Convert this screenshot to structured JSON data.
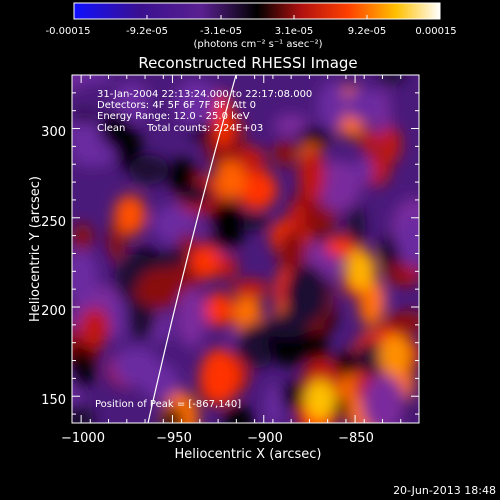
{
  "colorbar": {
    "tick_labels": [
      "-0.00015",
      "-9.2e-05",
      "-3.1e-05",
      "3.1e-05",
      "9.2e-05",
      "0.00015"
    ],
    "unit_label": "(photons cm⁻² s⁻¹ asec⁻²)",
    "colors": [
      "#1010ff",
      "#3a1090",
      "#5a2090",
      "#000000",
      "#b01010",
      "#ff4000",
      "#ffc000",
      "#ffffff"
    ]
  },
  "title": "Reconstructed RHESSI Image",
  "info": {
    "line1": "31-Jan-2004 22:13:24.000 to 22:17:08.000",
    "line2": "Detectors: 4F 5F 6F 7F 8F, Att 0",
    "line3": "Energy Range: 12.0 - 25.0 keV",
    "line4_a": "Clean",
    "line4_b": "Total counts: 2.24E+03"
  },
  "peak_label": "Position of Peak = [-867,140]",
  "axes": {
    "xlabel": "Heliocentric X (arcsec)",
    "ylabel": "Heliocentric Y (arcsec)",
    "xlim": [
      -1005,
      -815
    ],
    "ylim": [
      135,
      330
    ],
    "xticks": [
      -1000,
      -950,
      -900,
      -850
    ],
    "xtick_labels": [
      "−1000",
      "−950",
      "−900",
      "−850"
    ],
    "yticks": [
      150,
      200,
      250,
      300
    ],
    "ytick_labels": [
      "150",
      "200",
      "250",
      "300"
    ]
  },
  "footer": "20-Jun-2013 18:48"
}
